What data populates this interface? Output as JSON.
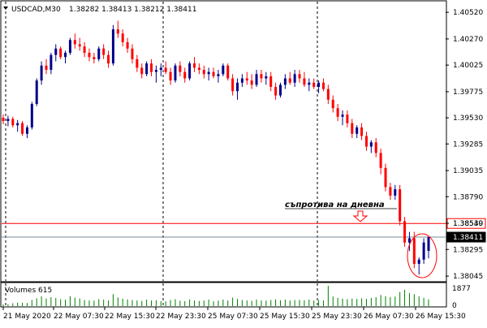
{
  "header": {
    "symbol_timeframe": "USDCAD,M30",
    "ohlc": "1.38282 1.38413 1.38212 1.38411"
  },
  "volume_panel": {
    "label": "Volumes 615",
    "max_label": "1877",
    "zero_label": "0"
  },
  "annotation": {
    "text": "съпротива на дневна",
    "arrow_icon": "down-arrow-icon",
    "circle_icon": "highlight-circle"
  },
  "colors": {
    "bull": "#00008b",
    "bear": "#ff0000",
    "grid": "#000000",
    "resistance_line": "#ff0000",
    "bid_line": "#778899",
    "volume_bar": "#008000"
  },
  "chart_data": {
    "type": "candlestick",
    "y_axis_ticks": [
      "1.40520",
      "1.40270",
      "1.40025",
      "1.39775",
      "1.39530",
      "1.39285",
      "1.39035",
      "1.38790",
      "1.38540",
      "1.38295",
      "1.38045"
    ],
    "ylim": [
      1.38,
      1.4062
    ],
    "x_axis_ticks": [
      "21 May 2020",
      "22 May 07:30",
      "22 May 15:30",
      "22 May 23:30",
      "25 May 07:30",
      "25 May 15:30",
      "25 May 23:30",
      "26 May 07:30",
      "26 May 15:30"
    ],
    "horizontal_lines": [
      {
        "label": "1.38539",
        "value": 1.38539,
        "kind": "resistance"
      },
      {
        "label": "1.38411",
        "value": 1.38411,
        "kind": "bid"
      }
    ],
    "ohlc": [
      [
        1.3953,
        1.3956,
        1.3947,
        1.395
      ],
      [
        1.395,
        1.3955,
        1.3945,
        1.3952
      ],
      [
        1.3952,
        1.3954,
        1.3944,
        1.3946
      ],
      [
        1.3946,
        1.3951,
        1.394,
        1.3948
      ],
      [
        1.3948,
        1.395,
        1.3936,
        1.3938
      ],
      [
        1.3938,
        1.3946,
        1.3934,
        1.3944
      ],
      [
        1.3944,
        1.3968,
        1.3942,
        1.3966
      ],
      [
        1.3966,
        1.399,
        1.3964,
        1.3988
      ],
      [
        1.3988,
        1.4006,
        1.3984,
        1.4002
      ],
      [
        1.4002,
        1.4008,
        1.3994,
        1.3998
      ],
      [
        1.3998,
        1.4014,
        1.3994,
        1.4012
      ],
      [
        1.4012,
        1.4022,
        1.4006,
        1.4018
      ],
      [
        1.4018,
        1.402,
        1.4008,
        1.401
      ],
      [
        1.401,
        1.4016,
        1.4004,
        1.4014
      ],
      [
        1.4014,
        1.4028,
        1.4012,
        1.4026
      ],
      [
        1.4026,
        1.4032,
        1.4018,
        1.4022
      ],
      [
        1.4022,
        1.4028,
        1.4016,
        1.402
      ],
      [
        1.402,
        1.4024,
        1.401,
        1.4014
      ],
      [
        1.4014,
        1.4018,
        1.4006,
        1.401
      ],
      [
        1.401,
        1.4014,
        1.4004,
        1.4008
      ],
      [
        1.4008,
        1.402,
        1.4006,
        1.4018
      ],
      [
        1.4018,
        1.4022,
        1.4008,
        1.4012
      ],
      [
        1.4012,
        1.4016,
        1.4,
        1.4004
      ],
      [
        1.4004,
        1.404,
        1.4002,
        1.4036
      ],
      [
        1.4036,
        1.4044,
        1.4028,
        1.4032
      ],
      [
        1.4032,
        1.4036,
        1.402,
        1.4024
      ],
      [
        1.4024,
        1.4028,
        1.4014,
        1.4018
      ],
      [
        1.4018,
        1.4022,
        1.4004,
        1.4008
      ],
      [
        1.4008,
        1.4012,
        1.3996,
        1.4
      ],
      [
        1.4,
        1.4004,
        1.399,
        1.3994
      ],
      [
        1.3994,
        1.4006,
        1.3992,
        1.4004
      ],
      [
        1.4004,
        1.4008,
        1.3992,
        1.3996
      ],
      [
        1.3996,
        1.4002,
        1.3986,
        1.3998
      ],
      [
        1.3998,
        1.4004,
        1.3992,
        1.4
      ],
      [
        1.4,
        1.4006,
        1.3994,
        1.3996
      ],
      [
        1.3996,
        1.4,
        1.3984,
        1.3988
      ],
      [
        1.3988,
        1.4004,
        1.3986,
        1.4002
      ],
      [
        1.4002,
        1.4006,
        1.3992,
        1.3996
      ],
      [
        1.3996,
        1.4,
        1.3986,
        1.399
      ],
      [
        1.399,
        1.4006,
        1.3988,
        1.4004
      ],
      [
        1.4004,
        1.401,
        1.3996,
        1.4
      ],
      [
        1.4,
        1.4004,
        1.3994,
        1.3998
      ],
      [
        1.3998,
        1.4002,
        1.399,
        1.3994
      ],
      [
        1.3994,
        1.4,
        1.3988,
        1.3996
      ],
      [
        1.3996,
        1.4,
        1.399,
        1.3992
      ],
      [
        1.3992,
        1.3998,
        1.3986,
        1.3994
      ],
      [
        1.3994,
        1.4004,
        1.3992,
        1.4002
      ],
      [
        1.4002,
        1.4004,
        1.3988,
        1.399
      ],
      [
        1.399,
        1.3994,
        1.3974,
        1.3978
      ],
      [
        1.3978,
        1.399,
        1.397,
        1.3986
      ],
      [
        1.3986,
        1.3994,
        1.3982,
        1.399
      ],
      [
        1.399,
        1.3996,
        1.3984,
        1.3988
      ],
      [
        1.3988,
        1.3994,
        1.398,
        1.3984
      ],
      [
        1.3984,
        1.3998,
        1.3982,
        1.3994
      ],
      [
        1.3994,
        1.3998,
        1.3986,
        1.399
      ],
      [
        1.399,
        1.3996,
        1.3984,
        1.3992
      ],
      [
        1.3992,
        1.3996,
        1.3978,
        1.3982
      ],
      [
        1.3982,
        1.3986,
        1.397,
        1.3974
      ],
      [
        1.3974,
        1.3986,
        1.3972,
        1.3984
      ],
      [
        1.3984,
        1.3994,
        1.398,
        1.399
      ],
      [
        1.399,
        1.3996,
        1.3984,
        1.3986
      ],
      [
        1.3986,
        1.3998,
        1.3982,
        1.3994
      ],
      [
        1.3994,
        1.3998,
        1.3986,
        1.399
      ],
      [
        1.399,
        1.3996,
        1.3982,
        1.3984
      ],
      [
        1.3984,
        1.399,
        1.3978,
        1.3986
      ],
      [
        1.3986,
        1.399,
        1.398,
        1.3982
      ],
      [
        1.3982,
        1.3988,
        1.3976,
        1.3986
      ],
      [
        1.3986,
        1.399,
        1.3978,
        1.398
      ],
      [
        1.398,
        1.3984,
        1.3966,
        1.397
      ],
      [
        1.397,
        1.3974,
        1.3958,
        1.3962
      ],
      [
        1.3962,
        1.3966,
        1.395,
        1.3954
      ],
      [
        1.3954,
        1.396,
        1.3946,
        1.3956
      ],
      [
        1.3956,
        1.396,
        1.3944,
        1.3948
      ],
      [
        1.3948,
        1.3952,
        1.3934,
        1.3938
      ],
      [
        1.3938,
        1.3946,
        1.3934,
        1.3944
      ],
      [
        1.3944,
        1.3948,
        1.3932,
        1.3936
      ],
      [
        1.3936,
        1.394,
        1.3922,
        1.3926
      ],
      [
        1.3926,
        1.3932,
        1.392,
        1.393
      ],
      [
        1.393,
        1.3934,
        1.3916,
        1.392
      ],
      [
        1.392,
        1.3924,
        1.39,
        1.3906
      ],
      [
        1.3906,
        1.391,
        1.3884,
        1.3888
      ],
      [
        1.3888,
        1.3892,
        1.3876,
        1.388
      ],
      [
        1.388,
        1.389,
        1.3876,
        1.3886
      ],
      [
        1.3886,
        1.389,
        1.3852,
        1.3856
      ],
      [
        1.3856,
        1.386,
        1.3832,
        1.3836
      ],
      [
        1.3836,
        1.3846,
        1.3828,
        1.384
      ],
      [
        1.384,
        1.3846,
        1.3812,
        1.3816
      ],
      [
        1.3816,
        1.3822,
        1.3806,
        1.382
      ],
      [
        1.382,
        1.384,
        1.3816,
        1.3836
      ],
      [
        1.38282,
        1.38413,
        1.38212,
        1.38411
      ]
    ],
    "volumes": [
      150,
      180,
      260,
      320,
      300,
      280,
      560,
      720,
      900,
      700,
      820,
      750,
      640,
      600,
      920,
      780,
      700,
      560,
      520,
      500,
      640,
      590,
      520,
      1100,
      800,
      680,
      620,
      560,
      520,
      480,
      600,
      520,
      540,
      460,
      440,
      560,
      640,
      500,
      460,
      620,
      520,
      480,
      520,
      600,
      440,
      500,
      600,
      520,
      780,
      660,
      560,
      520,
      480,
      600,
      520,
      500,
      560,
      620,
      540,
      600,
      520,
      560,
      580,
      540,
      600,
      520,
      560,
      520,
      1877,
      880,
      760,
      680,
      640,
      700,
      660,
      720,
      660,
      760,
      820,
      1020,
      920,
      840,
      880,
      1300,
      1500,
      1200,
      1100,
      900,
      760,
      615
    ]
  }
}
